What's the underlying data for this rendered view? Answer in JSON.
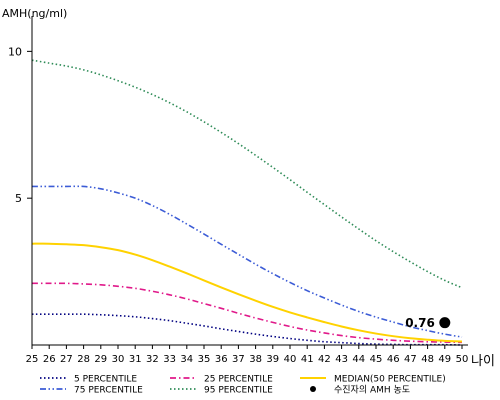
{
  "chart_data": {
    "type": "line",
    "ylabel": "AMH(ng/ml)",
    "xlabel": "나이",
    "yticks": [
      5,
      10
    ],
    "ylim": [
      0,
      11
    ],
    "xlim": [
      25,
      50
    ],
    "x": [
      25,
      26,
      27,
      28,
      29,
      30,
      31,
      32,
      33,
      34,
      35,
      36,
      37,
      38,
      39,
      40,
      41,
      42,
      43,
      44,
      45,
      46,
      47,
      48,
      49,
      50
    ],
    "series": [
      {
        "name": "5 PERCENTILE",
        "color": "#000080",
        "dash": "dot",
        "values": [
          1.05,
          1.05,
          1.05,
          1.05,
          1.03,
          1.0,
          0.96,
          0.9,
          0.83,
          0.74,
          0.65,
          0.55,
          0.46,
          0.37,
          0.29,
          0.22,
          0.16,
          0.11,
          0.08,
          0.05,
          0.03,
          0.02,
          0.01,
          0.01,
          0.01,
          0.0
        ]
      },
      {
        "name": "25 PERCENTILE",
        "color": "#e0198a",
        "dash": "dashdot",
        "values": [
          2.1,
          2.1,
          2.1,
          2.08,
          2.05,
          2.0,
          1.93,
          1.83,
          1.71,
          1.57,
          1.41,
          1.25,
          1.08,
          0.92,
          0.77,
          0.63,
          0.51,
          0.41,
          0.32,
          0.25,
          0.2,
          0.16,
          0.13,
          0.11,
          0.1,
          0.09
        ]
      },
      {
        "name": "MEDIAN(50 PERCENTILE)",
        "color": "#ffd200",
        "dash": "solid",
        "values": [
          3.45,
          3.45,
          3.43,
          3.4,
          3.33,
          3.23,
          3.08,
          2.89,
          2.67,
          2.44,
          2.2,
          1.96,
          1.73,
          1.51,
          1.3,
          1.11,
          0.94,
          0.78,
          0.63,
          0.5,
          0.39,
          0.3,
          0.23,
          0.18,
          0.14,
          0.12
        ]
      },
      {
        "name": "75 PERCENTILE",
        "color": "#3c5cd6",
        "dash": "dashdotdot",
        "values": [
          5.4,
          5.4,
          5.4,
          5.4,
          5.32,
          5.18,
          5.0,
          4.75,
          4.45,
          4.12,
          3.78,
          3.43,
          3.09,
          2.75,
          2.43,
          2.13,
          1.85,
          1.6,
          1.36,
          1.14,
          0.95,
          0.78,
          0.62,
          0.49,
          0.37,
          0.27
        ]
      },
      {
        "name": "95 PERCENTILE",
        "color": "#2e8b57",
        "dash": "dot",
        "values": [
          9.7,
          9.6,
          9.5,
          9.37,
          9.2,
          9.0,
          8.78,
          8.53,
          8.25,
          7.94,
          7.6,
          7.24,
          6.86,
          6.46,
          6.05,
          5.63,
          5.2,
          4.78,
          4.36,
          3.95,
          3.55,
          3.18,
          2.83,
          2.5,
          2.2,
          1.95
        ]
      }
    ],
    "points": [
      {
        "name": "수진자의 AMH 농도",
        "x": 49,
        "y": 0.76,
        "label": "0.76",
        "color": "#000000"
      }
    ]
  }
}
